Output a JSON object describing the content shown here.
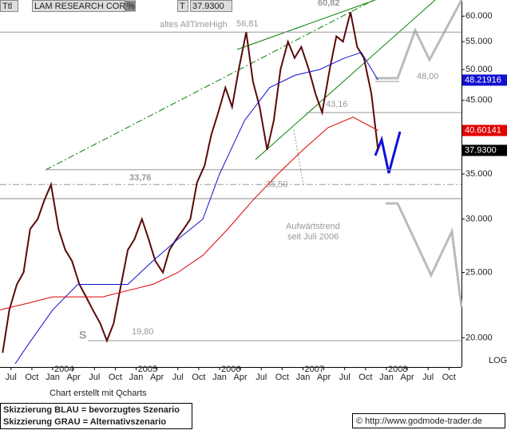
{
  "header": {
    "code": "Ttl",
    "name": "LAM RESEARCH CORP",
    "pct": "%",
    "t": "T",
    "price": "37.9300"
  },
  "chart_data": {
    "type": "line",
    "log_scale": true,
    "xlim": [
      2003.368,
      2008.9
    ],
    "ylim": [
      18.1,
      63.4
    ],
    "yticks": [
      {
        "value": 20,
        "label": "20.000"
      },
      {
        "value": 25,
        "label": "25.000"
      },
      {
        "value": 30,
        "label": "30.000"
      },
      {
        "value": 35,
        "label": "35.000"
      },
      {
        "value": 45,
        "label": "45.000"
      },
      {
        "value": 50,
        "label": "50.000"
      },
      {
        "value": 55,
        "label": "55.000"
      },
      {
        "value": 60,
        "label": "60.000"
      }
    ],
    "xticks": [
      {
        "value": 2003.5,
        "label": "Jul"
      },
      {
        "value": 2003.75,
        "label": "Oct"
      },
      {
        "value": 2004.0,
        "label": "Jan"
      },
      {
        "value": 2004.25,
        "label": "Apr"
      },
      {
        "value": 2004.5,
        "label": "Jul"
      },
      {
        "value": 2004.75,
        "label": "Oct"
      },
      {
        "value": 2005.0,
        "label": "Jan"
      },
      {
        "value": 2005.25,
        "label": "Apr"
      },
      {
        "value": 2005.5,
        "label": "Jul"
      },
      {
        "value": 2005.75,
        "label": "Oct"
      },
      {
        "value": 2006.0,
        "label": "Jan"
      },
      {
        "value": 2006.25,
        "label": "Apr"
      },
      {
        "value": 2006.5,
        "label": "Jul"
      },
      {
        "value": 2006.75,
        "label": "Oct"
      },
      {
        "value": 2007.0,
        "label": "Jan"
      },
      {
        "value": 2007.25,
        "label": "Apr"
      },
      {
        "value": 2007.5,
        "label": "Jul"
      },
      {
        "value": 2007.75,
        "label": "Oct"
      },
      {
        "value": 2008.0,
        "label": "Jan"
      },
      {
        "value": 2008.25,
        "label": "Apr"
      },
      {
        "value": 2008.5,
        "label": "Jul"
      },
      {
        "value": 2008.75,
        "label": "Oct"
      }
    ],
    "year_ticks": [
      2004,
      2005,
      2006,
      2007,
      2008
    ],
    "series": [
      {
        "color": "#5a0a0a",
        "x": [
          2003.4,
          2003.48,
          2003.57,
          2003.65,
          2003.73,
          2003.82,
          2003.9,
          2003.98,
          2004.07,
          2004.15,
          2004.23,
          2004.32,
          2004.4,
          2004.48,
          2004.57,
          2004.65,
          2004.73,
          2004.82,
          2004.9,
          2004.98,
          2005.07,
          2005.15,
          2005.23,
          2005.32,
          2005.4,
          2005.48,
          2005.57,
          2005.65,
          2005.73,
          2005.82,
          2005.9,
          2005.98,
          2006.07,
          2006.15,
          2006.23,
          2006.32,
          2006.4,
          2006.48,
          2006.57,
          2006.65,
          2006.73,
          2006.82,
          2006.9,
          2006.98,
          2007.07,
          2007.15,
          2007.23,
          2007.32,
          2007.4,
          2007.48,
          2007.57,
          2007.65,
          2007.73,
          2007.82,
          2007.9
        ],
        "values": [
          19,
          22,
          24,
          25,
          29,
          30,
          32,
          33.76,
          29,
          27,
          26,
          24,
          23,
          22,
          21,
          19.8,
          21,
          24,
          27,
          28,
          30,
          28,
          26,
          25,
          27,
          28,
          29,
          30,
          34,
          36,
          40,
          43,
          47,
          44,
          50,
          56.81,
          48,
          44,
          38,
          42,
          50,
          55,
          52,
          54,
          50,
          46,
          43.16,
          50,
          56,
          55,
          60.82,
          54,
          52,
          46,
          37.93
        ]
      },
      {
        "color": "#1010d0",
        "x": [
          2003.55,
          2003.7,
          2004.0,
          2004.3,
          2004.6,
          2004.9,
          2005.2,
          2005.5,
          2005.8,
          2006.0,
          2006.3,
          2006.6,
          2006.9,
          2007.2,
          2007.5,
          2007.7,
          2007.9
        ],
        "values": [
          18.3,
          19.5,
          22,
          24,
          24,
          24,
          26,
          28,
          30,
          35,
          42,
          47,
          49,
          50,
          52,
          53,
          48.21916
        ]
      },
      {
        "color": "#e00000",
        "x": [
          2003.37,
          2003.7,
          2004.0,
          2004.3,
          2004.6,
          2004.9,
          2005.2,
          2005.5,
          2005.8,
          2006.1,
          2006.4,
          2006.7,
          2007.0,
          2007.3,
          2007.6,
          2007.9
        ],
        "values": [
          22,
          22.5,
          23,
          23,
          23,
          23.5,
          24,
          25,
          26.5,
          29,
          32,
          35,
          38,
          41,
          42.5,
          40.60141
        ]
      }
    ],
    "levels": [
      {
        "value": 56.81,
        "label": "56,81"
      },
      {
        "value": 43.16,
        "label": "43,16"
      },
      {
        "value": 35.5,
        "label": "35,50"
      },
      {
        "value": 33.76,
        "label": "33,76"
      },
      {
        "value": 48.0,
        "label": "48,00"
      },
      {
        "value": 19.8,
        "label": "19,80"
      }
    ],
    "peak": {
      "value": 60.82,
      "label": "60,82"
    },
    "annotations": {
      "ath": "altes AllTimeHigh",
      "trend1": "Aufwärtstrend",
      "trend2": "seit Juli 2006",
      "s": "S",
      "log": "LOG"
    }
  },
  "footer": {
    "credit": "Chart erstellt mit Qcharts",
    "blue": "Skizzierung BLAU = bevorzugtes Szenario",
    "gray": "Skizzierung GRAU = Alternativszenario",
    "site": "© http://www.godmode-trader.de"
  }
}
